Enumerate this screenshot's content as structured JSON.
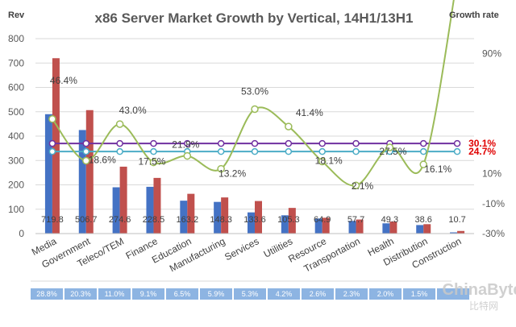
{
  "chart_data": {
    "type": "bar",
    "title": "x86 Server Market Growth by Vertical, 14H1/13H1",
    "left_axis_label": "Rev",
    "right_axis_label": "Growth rate",
    "ylim_left": [
      0,
      800
    ],
    "left_ticks": [
      "0",
      "100",
      "200",
      "300",
      "400",
      "500",
      "600",
      "700",
      "800"
    ],
    "ylim_right": [
      -30,
      100
    ],
    "right_ticks": [
      "-30%",
      "-10%",
      "10%",
      "",
      "",
      "90%"
    ],
    "right_tick_values": [
      -30,
      -10,
      10,
      30,
      50,
      90
    ],
    "categories": [
      "Media",
      "Government",
      "Teleco/TEM",
      "Finance",
      "Education",
      "Manufacturing",
      "Services",
      "Utilities",
      "Resource",
      "Transportation",
      "Health",
      "Distribution",
      "Construction"
    ],
    "series": [
      {
        "values": [
          490,
          425,
          190,
          192,
          135,
          130,
          87,
          75,
          62,
          52,
          42,
          35,
          5
        ],
        "color": "#4472c4"
      },
      {
        "values": [
          719.8,
          506.7,
          274.6,
          228.5,
          163.2,
          148.3,
          133.6,
          105.3,
          64.9,
          57.7,
          49.3,
          38.6,
          10.7
        ],
        "color": "#c0504d"
      }
    ],
    "bar_labels": [
      "719.8",
      "506.7",
      "274.6",
      "228.5",
      "163.2",
      "148.3",
      "133.6",
      "105.3",
      "64.9",
      "57.7",
      "49.3",
      "38.6",
      "10.7"
    ],
    "growth": {
      "values": [
        46.4,
        18.6,
        43.0,
        17.5,
        21.8,
        13.2,
        53.0,
        41.4,
        18.1,
        2.1,
        27.5,
        16.1,
        140
      ],
      "labels": [
        "46.4%",
        "18.6%",
        "43.0%",
        "17.5%",
        "21.8%",
        "13.2%",
        "53.0%",
        "41.4%",
        "18.1%",
        "2.1%",
        "27.5%",
        "16.1%",
        ""
      ],
      "color": "#9bbb59"
    },
    "reference_lines": [
      {
        "value": 30.1,
        "label": "30.1%",
        "color": "#7030a0"
      },
      {
        "value": 24.7,
        "label": "24.7%",
        "color": "#4bacc6"
      }
    ],
    "shares": [
      "28.8%",
      "20.3%",
      "11.0%",
      "9.1%",
      "6.5%",
      "5.9%",
      "5.3%",
      "4.2%",
      "2.6%",
      "2.3%",
      "2.0%",
      "1.5%",
      ""
    ],
    "grid": true,
    "legend": "none"
  },
  "watermark": {
    "text": "ChinaByte",
    "sub": "比特网"
  }
}
